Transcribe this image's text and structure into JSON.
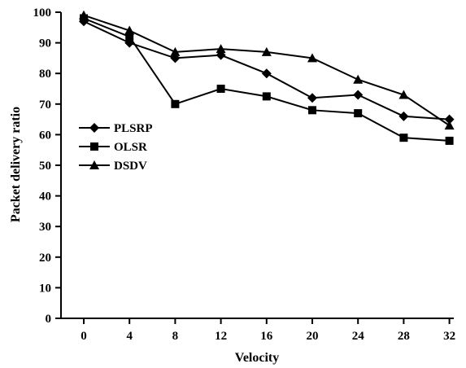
{
  "chart_data": {
    "type": "line",
    "title": "",
    "xlabel": "Velocity",
    "ylabel": "Packet delivery ratio",
    "x": [
      0,
      4,
      8,
      12,
      16,
      20,
      24,
      28,
      32
    ],
    "xticks": [
      "0",
      "4",
      "8",
      "12",
      "16",
      "20",
      "24",
      "28",
      "32"
    ],
    "yticks": [
      "0",
      "10",
      "20",
      "30",
      "40",
      "50",
      "60",
      "70",
      "80",
      "90",
      "100"
    ],
    "ylim": [
      0,
      100
    ],
    "grid": false,
    "legend_position": "middle-left",
    "series": [
      {
        "name": "PLSRP",
        "marker": "diamond",
        "values": [
          97,
          90,
          85,
          86,
          80,
          72,
          73,
          66,
          65
        ]
      },
      {
        "name": "OLSR",
        "marker": "square",
        "values": [
          98,
          92,
          70,
          75,
          72.5,
          68,
          67,
          59,
          58
        ]
      },
      {
        "name": "DSDV",
        "marker": "triangle",
        "values": [
          99,
          94,
          87,
          88,
          87,
          85,
          78,
          73,
          63
        ]
      }
    ]
  }
}
